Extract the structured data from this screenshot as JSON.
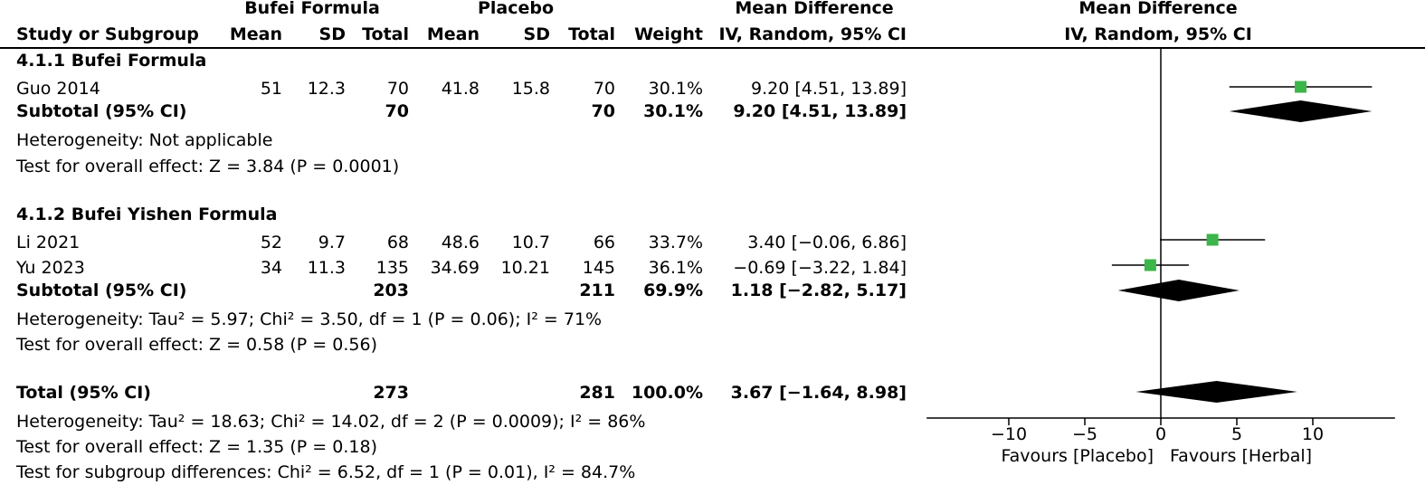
{
  "header": {
    "group1": "Bufei Formula",
    "group2": "Placebo",
    "md_title_table": "Mean Difference",
    "md_title_plot": "Mean Difference",
    "study_col": "Study or Subgroup",
    "mean1": "Mean",
    "sd1": "SD",
    "total1": "Total",
    "mean2": "Mean",
    "sd2": "SD",
    "total2": "Total",
    "weight": "Weight",
    "method_table": "IV, Random, 95% CI",
    "method_plot": "IV, Random, 95% CI"
  },
  "subgroups": [
    {
      "title": "4.1.1 Bufei Formula",
      "studies": [
        {
          "name": "Guo 2014",
          "mean1": "51",
          "sd1": "12.3",
          "total1": "70",
          "mean2": "41.8",
          "sd2": "15.8",
          "total2": "70",
          "weight": "30.1%",
          "ci": "9.20 [4.51, 13.89]"
        }
      ],
      "subtotal": {
        "label": "Subtotal (95% CI)",
        "total1": "70",
        "total2": "70",
        "weight": "30.1%",
        "ci": "9.20 [4.51, 13.89]"
      },
      "heterogeneity": "Heterogeneity: Not applicable",
      "overall": "Test for overall effect: Z = 3.84 (P = 0.0001)"
    },
    {
      "title": "4.1.2 Bufei Yishen Formula",
      "studies": [
        {
          "name": "Li 2021",
          "mean1": "52",
          "sd1": "9.7",
          "total1": "68",
          "mean2": "48.6",
          "sd2": "10.7",
          "total2": "66",
          "weight": "33.7%",
          "ci": "3.40 [−0.06, 6.86]"
        },
        {
          "name": "Yu 2023",
          "mean1": "34",
          "sd1": "11.3",
          "total1": "135",
          "mean2": "34.69",
          "sd2": "10.21",
          "total2": "145",
          "weight": "36.1%",
          "ci": "−0.69 [−3.22, 1.84]"
        }
      ],
      "subtotal": {
        "label": "Subtotal (95% CI)",
        "total1": "203",
        "total2": "211",
        "weight": "69.9%",
        "ci": "1.18 [−2.82, 5.17]"
      },
      "heterogeneity": "Heterogeneity: Tau² = 5.97; Chi² = 3.50, df = 1 (P = 0.06); I² = 71%",
      "overall": "Test for overall effect: Z = 0.58 (P = 0.56)"
    }
  ],
  "total": {
    "label": "Total (95% CI)",
    "total1": "273",
    "total2": "281",
    "weight": "100.0%",
    "ci": "3.67 [−1.64, 8.98]",
    "heterogeneity": "Heterogeneity: Tau² = 18.63; Chi² = 14.02, df = 2 (P = 0.0009); I² = 86%",
    "overall": "Test for overall effect: Z = 1.35 (P = 0.18)",
    "subgroup_diff": "Test for subgroup differences: Chi² = 6.52, df = 1 (P = 0.01), I² = 84.7%"
  },
  "chart_data": {
    "type": "forest",
    "xlim": [
      -16,
      16
    ],
    "xticks": [
      -10,
      -5,
      0,
      5,
      10
    ],
    "xtick_labels": [
      "−10",
      "−5",
      "0",
      "5",
      "10"
    ],
    "favours_left": "Favours [Placebo]",
    "favours_right": "Favours [Herbal]",
    "study_color": "#3cb54a",
    "studies": [
      {
        "name": "Guo 2014",
        "md": 9.2,
        "lo": 4.51,
        "hi": 13.89,
        "weight": 30.1
      },
      {
        "name": "Li 2021",
        "md": 3.4,
        "lo": -0.06,
        "hi": 6.86,
        "weight": 33.7
      },
      {
        "name": "Yu 2023",
        "md": -0.69,
        "lo": -3.22,
        "hi": 1.84,
        "weight": 36.1
      }
    ],
    "diamonds": [
      {
        "name": "Subtotal 4.1.1",
        "md": 9.2,
        "lo": 4.51,
        "hi": 13.89
      },
      {
        "name": "Subtotal 4.1.2",
        "md": 1.18,
        "lo": -2.82,
        "hi": 5.17
      },
      {
        "name": "Total",
        "md": 3.67,
        "lo": -1.64,
        "hi": 8.98
      }
    ]
  }
}
